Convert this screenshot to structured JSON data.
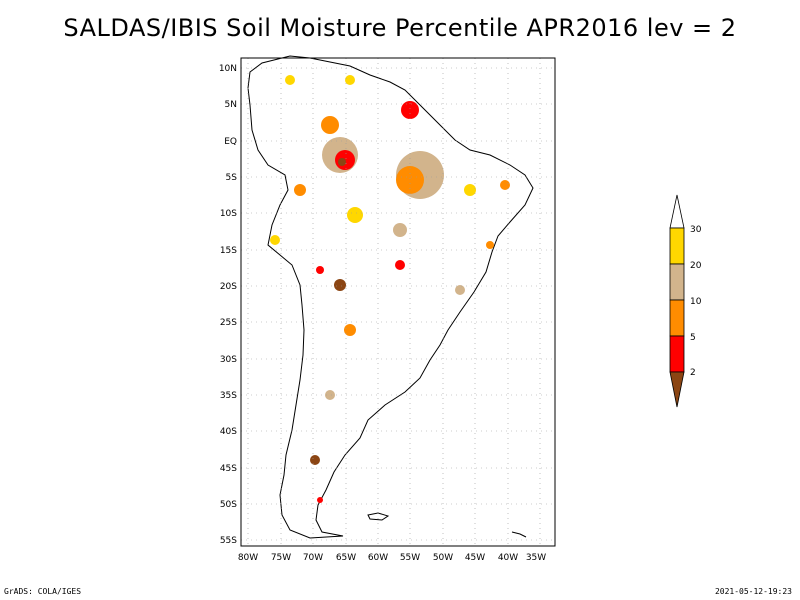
{
  "title": "SALDAS/IBIS Soil Moisture Percentile APR2016 lev = 2",
  "map": {
    "lon_range": [
      -81,
      -31
    ],
    "lat_range": [
      -56,
      11
    ],
    "lon_ticks": [
      "80W",
      "75W",
      "70W",
      "65W",
      "60W",
      "55W",
      "50W",
      "45W",
      "40W",
      "35W"
    ],
    "lat_ticks": [
      "10N",
      "5N",
      "EQ",
      "5S",
      "10S",
      "15S",
      "20S",
      "25S",
      "30S",
      "35S",
      "40S",
      "45S",
      "50S",
      "55S"
    ],
    "grid": true
  },
  "colorbar": {
    "labels": [
      "2",
      "5",
      "10",
      "20",
      "30"
    ],
    "colors": [
      "#8b4513",
      "#ff0000",
      "#ff8c00",
      "#d2b48c",
      "#ffd700",
      "#ffffff"
    ]
  },
  "footer": {
    "left": "GrADS: COLA/IGES",
    "right": "2021-05-12-19:23"
  }
}
